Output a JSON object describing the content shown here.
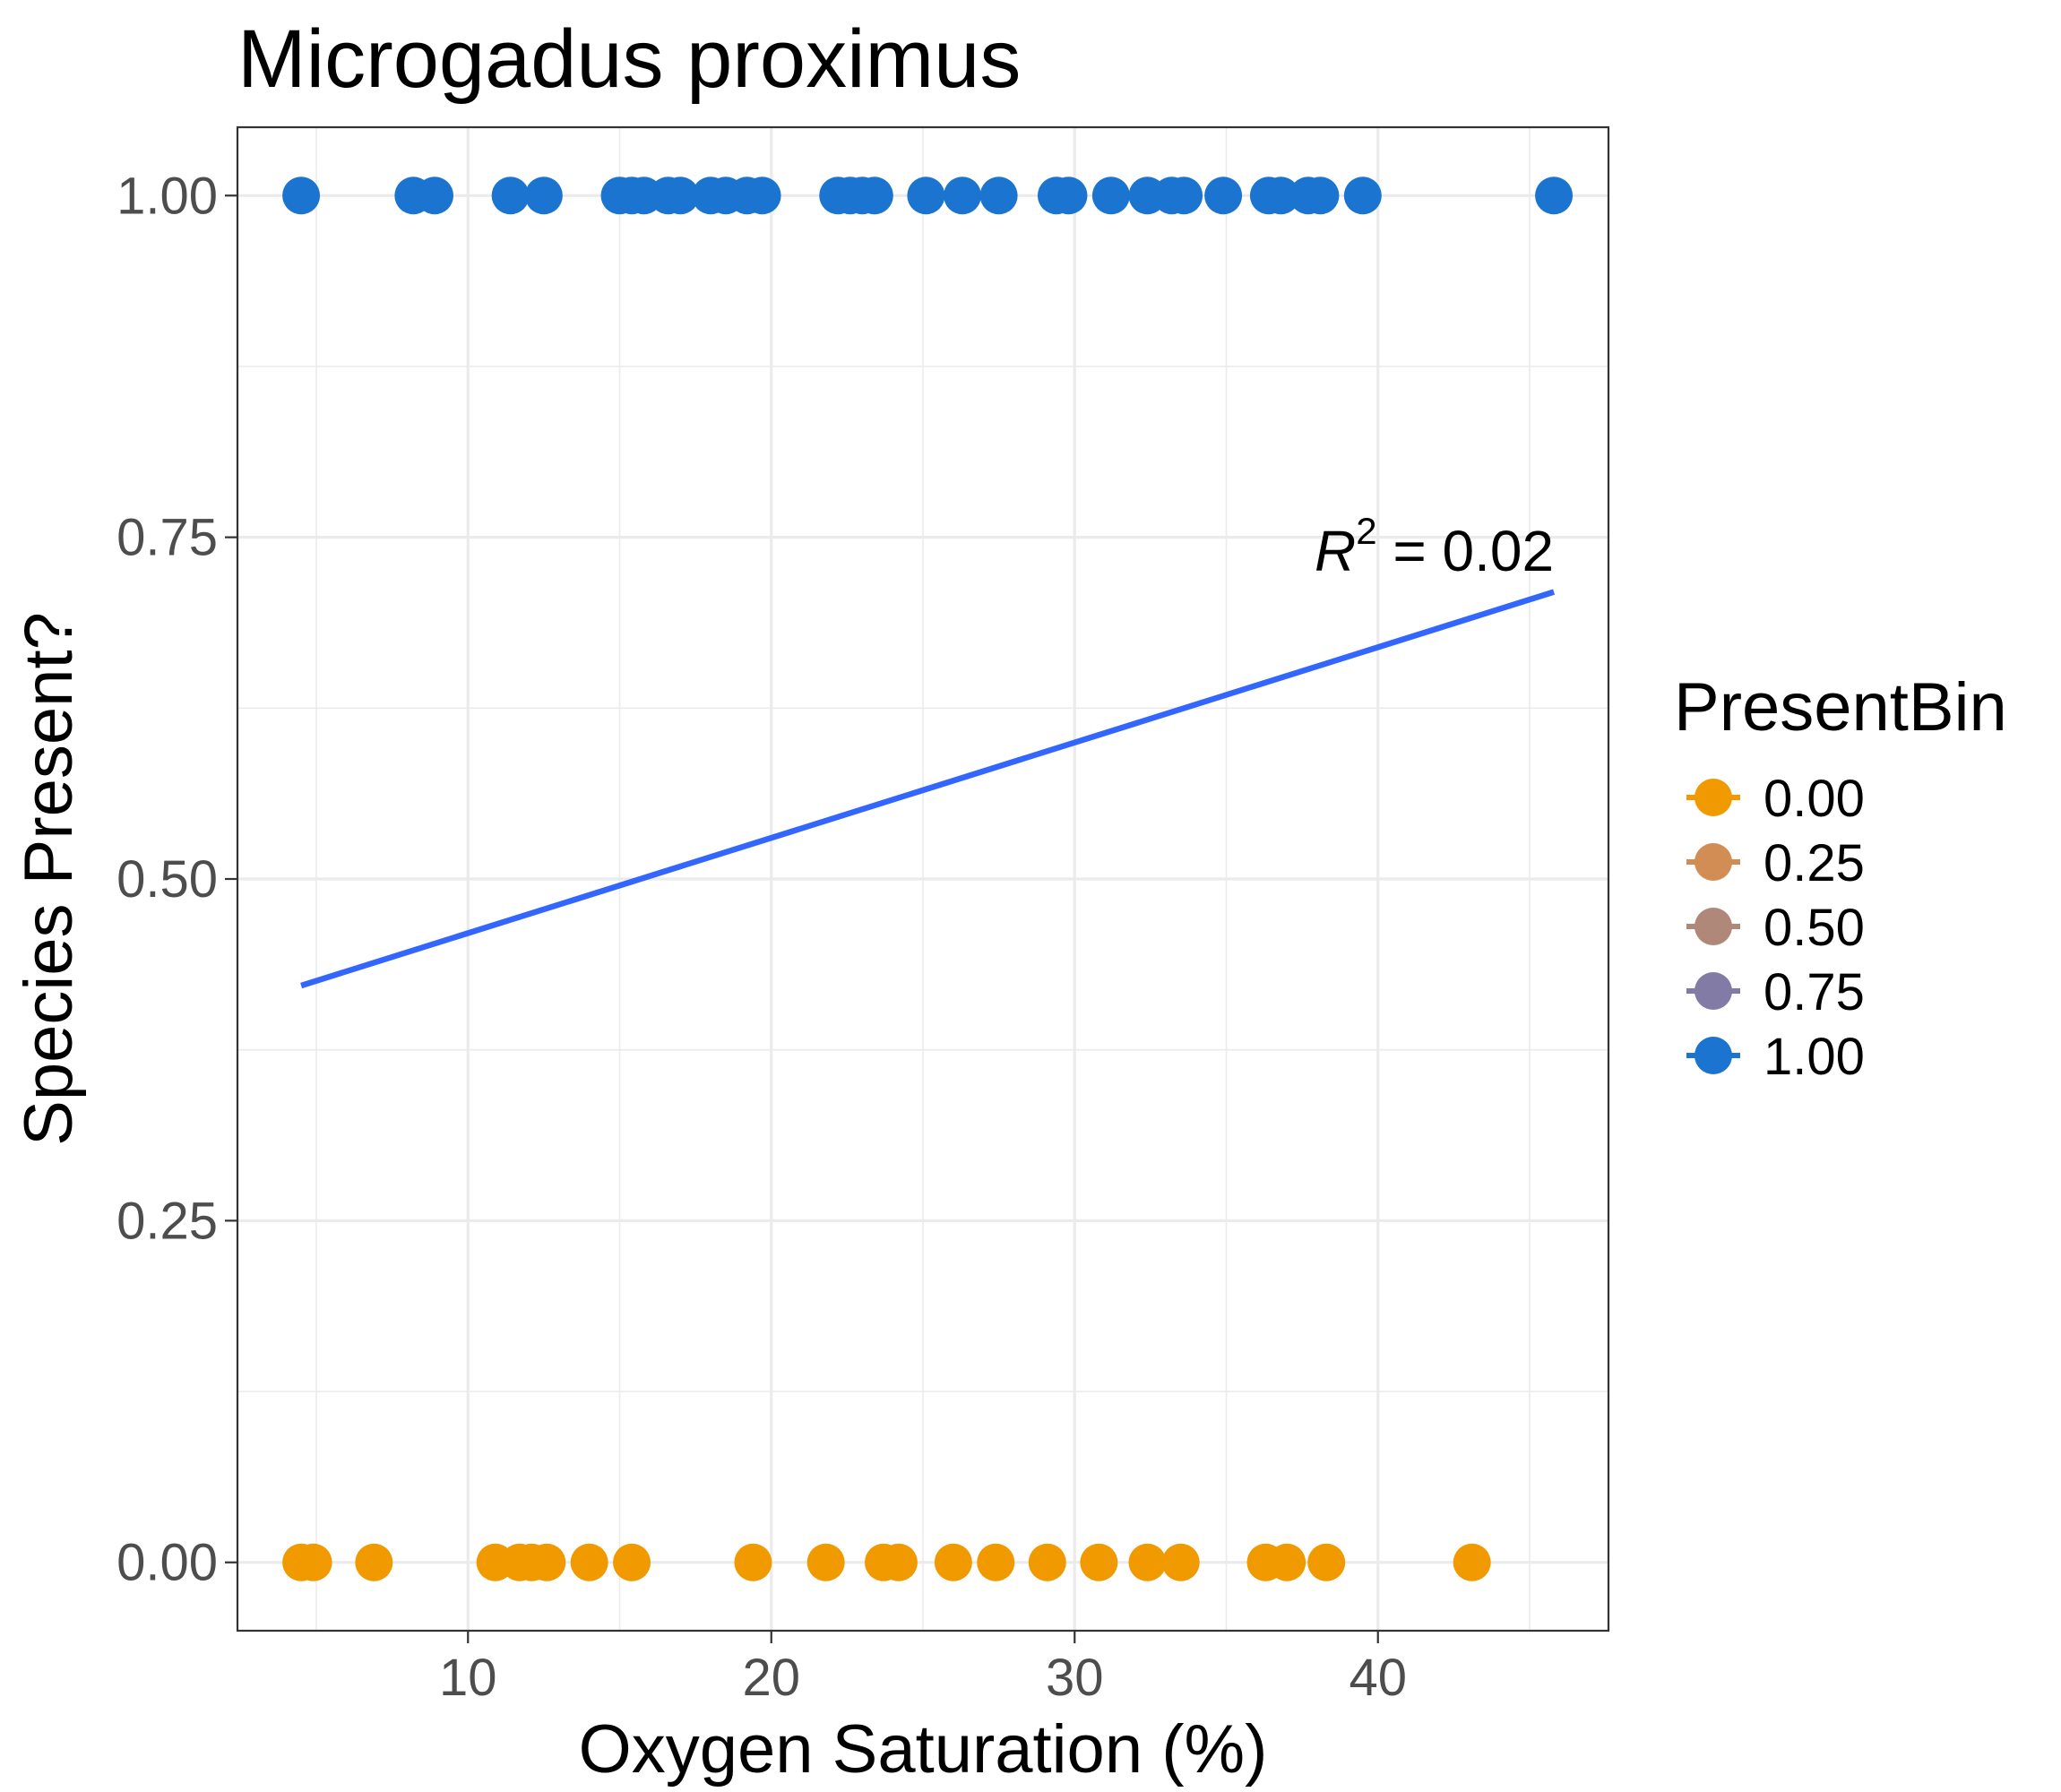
{
  "chart_data": {
    "type": "scatter",
    "title": "Microgadus proximus",
    "xlabel": "Oxygen Saturation (%)",
    "ylabel": "Species Present?",
    "xlim": [
      2.4,
      47.6
    ],
    "ylim": [
      -0.05,
      1.05
    ],
    "x_ticks": [
      10,
      20,
      30,
      40
    ],
    "x_tick_labels": [
      "10",
      "20",
      "30",
      "40"
    ],
    "y_ticks": [
      0,
      0.25,
      0.5,
      0.75,
      1
    ],
    "y_tick_labels": [
      "0.00",
      "0.25",
      "0.50",
      "0.75",
      "1.00"
    ],
    "grid": true,
    "legend": {
      "title": "PresentBin",
      "position": "right",
      "entries": [
        {
          "label": "0.00",
          "value": 0.0,
          "color": "#F09A00"
        },
        {
          "label": "0.25",
          "value": 0.25,
          "color": "#D18D53"
        },
        {
          "label": "0.50",
          "value": 0.5,
          "color": "#B0887A"
        },
        {
          "label": "0.75",
          "value": 0.75,
          "color": "#827BA6"
        },
        {
          "label": "1.00",
          "value": 1.0,
          "color": "#1B75D0"
        }
      ]
    },
    "series": [
      {
        "present_bin": 1.0,
        "color": "#1B75D0",
        "y": 1,
        "x": [
          4.5,
          8.2,
          8.9,
          11.4,
          12.5,
          15.0,
          15.4,
          15.8,
          16.6,
          17.0,
          18.0,
          18.5,
          19.2,
          19.7,
          22.2,
          22.6,
          23.0,
          23.4,
          25.1,
          26.3,
          27.5,
          29.4,
          29.8,
          31.2,
          32.4,
          33.2,
          33.6,
          34.9,
          36.4,
          36.8,
          37.7,
          38.1,
          39.5,
          45.8
        ]
      },
      {
        "present_bin": 0.0,
        "color": "#F09A00",
        "y": 0,
        "x": [
          4.5,
          4.9,
          6.9,
          10.9,
          11.7,
          12.1,
          12.6,
          14.0,
          15.4,
          19.4,
          21.8,
          23.7,
          24.2,
          26.0,
          27.4,
          29.1,
          30.8,
          32.4,
          33.5,
          36.3,
          37.0,
          38.3,
          43.1
        ]
      }
    ],
    "trend_line": {
      "color": "#3366FF",
      "x": [
        4.5,
        45.8
      ],
      "y": [
        0.422,
        0.71
      ]
    },
    "annotation": {
      "r_label": "R",
      "superscript": "2",
      "text": " = 0.02",
      "x": 45.8,
      "y": 0.74
    }
  }
}
